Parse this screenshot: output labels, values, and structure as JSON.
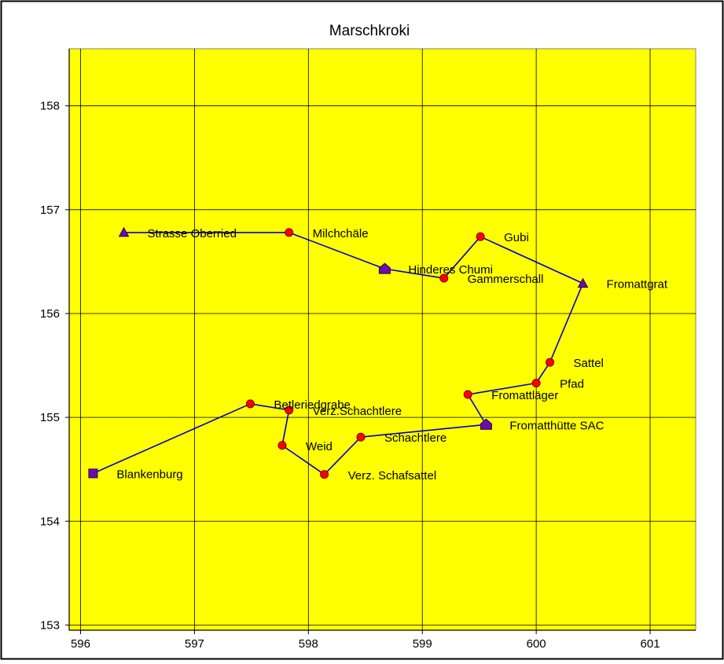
{
  "chart_data": {
    "type": "line",
    "title": "Marschkroki",
    "xlabel": "",
    "ylabel": "",
    "xlim": [
      595.9,
      601.4
    ],
    "ylim": [
      152.95,
      158.55
    ],
    "x_ticks": [
      596,
      597,
      598,
      599,
      600,
      601
    ],
    "y_ticks": [
      153,
      154,
      155,
      156,
      157,
      158
    ],
    "x_tick_labels": [
      "596",
      "597",
      "598",
      "599",
      "600",
      "601"
    ],
    "y_tick_labels": [
      "153",
      "154",
      "155",
      "156",
      "157",
      "158"
    ],
    "grid": true,
    "legend": "none",
    "colors": {
      "plot_background": "#ffff00",
      "line": "#0000cc",
      "waypoint": "#ff0000",
      "key_point": "#6a0dad",
      "grid": "#000000"
    },
    "series": [
      {
        "points": [
          {
            "x": 596.38,
            "y": 156.78,
            "label": "Strasse Oberried",
            "marker": "triangle"
          },
          {
            "x": 597.83,
            "y": 156.78,
            "label": "Milchchäle",
            "marker": "circle"
          },
          {
            "x": 598.67,
            "y": 156.43,
            "label": "Hinderes Chumi",
            "marker": "house"
          },
          {
            "x": 599.19,
            "y": 156.34,
            "label": "Gammerschall",
            "marker": "circle"
          },
          {
            "x": 599.51,
            "y": 156.74,
            "label": "Gubi",
            "marker": "circle"
          },
          {
            "x": 600.41,
            "y": 156.29,
            "label": "Fromattgrat",
            "marker": "triangle"
          },
          {
            "x": 600.12,
            "y": 155.53,
            "label": "Sattel",
            "marker": "circle"
          },
          {
            "x": 600.0,
            "y": 155.33,
            "label": "Pfad",
            "marker": "circle"
          },
          {
            "x": 599.4,
            "y": 155.22,
            "label": "Fromattläger",
            "marker": "circle"
          },
          {
            "x": 599.56,
            "y": 154.93,
            "label": "Fromatthütte SAC",
            "marker": "house"
          },
          {
            "x": 598.46,
            "y": 154.81,
            "label": "Schachtlere",
            "marker": "circle"
          },
          {
            "x": 598.14,
            "y": 154.45,
            "label": "Verz. Schafsattel",
            "marker": "circle"
          },
          {
            "x": 597.77,
            "y": 154.73,
            "label": "Weid",
            "marker": "circle"
          },
          {
            "x": 597.83,
            "y": 155.07,
            "label": "Verz.Schachtlere",
            "marker": "circle"
          },
          {
            "x": 597.49,
            "y": 155.13,
            "label": "Betleriedgrabe",
            "marker": "circle"
          },
          {
            "x": 596.11,
            "y": 154.46,
            "label": "Blankenburg",
            "marker": "square"
          }
        ]
      }
    ]
  }
}
